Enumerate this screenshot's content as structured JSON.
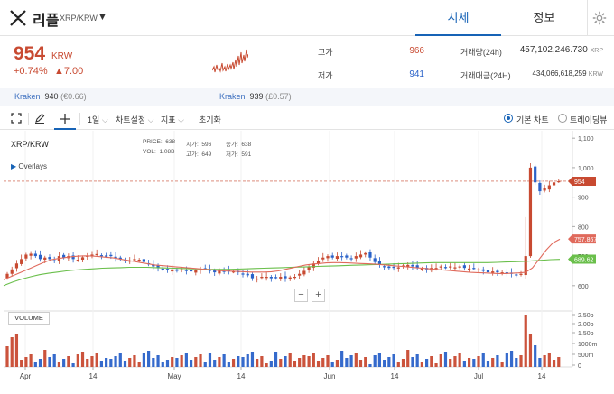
{
  "header": {
    "coin_name": "리플",
    "pair": "XRP/KRW",
    "tabs": [
      {
        "label": "시세"
      },
      {
        "label": "정보"
      }
    ],
    "active_tab": 0
  },
  "summary": {
    "price": "954",
    "price_unit": "KRW",
    "change_rate": "+0.74%",
    "change_amount": "▲7.00",
    "high_label": "고가",
    "high": "966",
    "low_label": "저가",
    "low": "941",
    "volume_label": "거래량(24h)",
    "volume": "457,102,246.730",
    "volume_unit": "XRP",
    "value_label": "거래대금(24H)",
    "value": "434,066,618,259",
    "value_unit": "KRW"
  },
  "exchanges": [
    {
      "name": "Kraken",
      "price": "940",
      "change": "(€0.66)"
    },
    {
      "name": "Kraken",
      "price": "939",
      "change": "(£0.57)"
    }
  ],
  "toolbar": {
    "interval": "1일",
    "chart_settings": "차트설정",
    "indicators": "지표",
    "reset": "초기화",
    "basic_chart": "기본 차트",
    "tradingview": "트레이딩뷰"
  },
  "chart_panel": {
    "symbol": "XRP/KRW",
    "overlays": "Overlays",
    "ohlc": {
      "price_label": "PRICE:",
      "price": "638",
      "open_label": "시가:",
      "open": "596",
      "close_label": "종가:",
      "close": "638",
      "vol_label": "VOL:",
      "vol": "1.08B",
      "high_label": "고가:",
      "high": "649",
      "low_label": "저가:",
      "low": "591"
    },
    "volume_label": "VOLUME",
    "zoom_out": "−",
    "zoom_in": "+"
  },
  "chart_data": {
    "type": "candlestick",
    "price_axis": {
      "ticks": [
        "1,100",
        "1,000",
        "900",
        "800",
        "700",
        "600"
      ],
      "min": 520,
      "max": 1125
    },
    "volume_axis": {
      "ticks": [
        "2.50b",
        "2.00b",
        "1.50b",
        "1000m",
        "500m",
        "0"
      ]
    },
    "x_ticks": [
      "Apr",
      "14",
      "May",
      "14",
      "Jun",
      "14",
      "Jul",
      "14"
    ],
    "current_price": 954,
    "current_price_label": "954",
    "ma_short_label": "757.867",
    "ma_long_label": "689.62",
    "candles_close": [
      640,
      655,
      675,
      690,
      705,
      708,
      700,
      690,
      695,
      690,
      685,
      700,
      695,
      700,
      690,
      688,
      696,
      701,
      705,
      707,
      702,
      700,
      700,
      693,
      690,
      685,
      685,
      690,
      688,
      680,
      672,
      665,
      660,
      655,
      652,
      655,
      650,
      655,
      650,
      648,
      652,
      655,
      658,
      650,
      645,
      650,
      648,
      650,
      648,
      645,
      640,
      635,
      625,
      624,
      630,
      630,
      625,
      626,
      630,
      625,
      628,
      630,
      640,
      650,
      665,
      675,
      685,
      695,
      700,
      695,
      700,
      698,
      695,
      690,
      700,
      705,
      710,
      695,
      680,
      670,
      665,
      660,
      660,
      662,
      668,
      670,
      665,
      660,
      658,
      655,
      660,
      660,
      665,
      662,
      665,
      662,
      665,
      660,
      658,
      658,
      655,
      650,
      645,
      648,
      645,
      645,
      640,
      640,
      635,
      640,
      700,
      1000,
      950,
      920,
      930,
      940,
      950,
      954
    ],
    "ma_short": [
      620,
      630,
      640,
      650,
      660,
      670,
      680,
      688,
      692,
      695,
      698,
      700,
      701,
      700,
      698,
      696,
      694,
      690,
      686,
      682,
      678,
      674,
      670,
      668,
      666,
      664,
      662,
      660,
      658,
      656,
      654,
      652,
      650,
      649,
      648,
      647,
      646,
      646,
      646,
      647,
      650,
      655,
      660,
      665,
      670,
      673,
      675,
      677,
      678,
      678,
      677,
      676,
      675,
      674,
      673,
      671,
      669,
      667,
      665,
      663,
      661,
      659,
      657,
      655,
      653,
      651,
      649,
      647,
      645,
      644,
      643,
      642,
      641,
      641,
      642,
      643,
      645,
      660,
      690,
      720,
      745,
      757
    ],
    "ma_long": [
      600,
      612,
      622,
      630,
      637,
      642,
      646,
      650,
      653,
      655,
      657,
      659,
      660,
      661,
      662,
      662,
      662,
      661,
      660,
      659,
      658,
      657,
      656,
      655,
      655,
      655,
      656,
      657,
      658,
      659,
      660,
      661,
      662,
      663,
      664,
      665,
      666,
      667,
      668,
      669,
      670,
      671,
      672,
      673,
      674,
      675,
      676,
      677,
      678,
      678,
      678,
      678,
      678,
      678,
      678,
      679,
      680,
      681,
      682,
      684,
      686,
      688,
      689
    ]
  },
  "colors": {
    "up": "#c84a31",
    "down": "#2a62c9",
    "accent": "#1763b6",
    "ma_short": "#e06a5c",
    "ma_long": "#6abf4b"
  }
}
